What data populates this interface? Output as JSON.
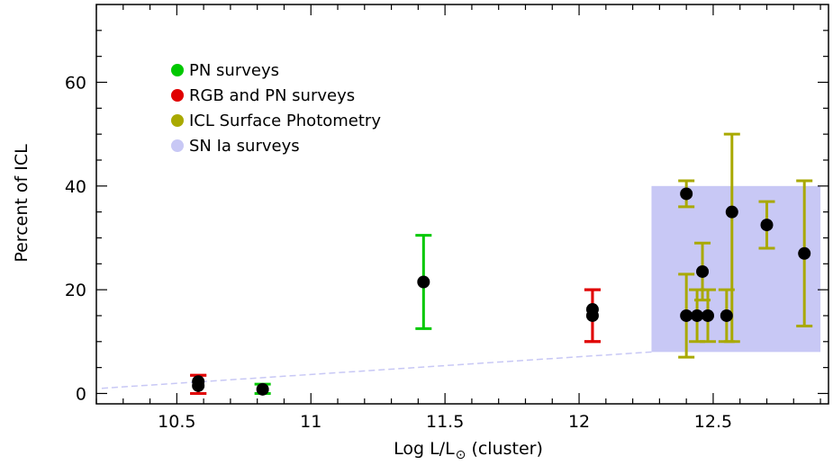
{
  "chart_data": {
    "type": "scatter",
    "xlabel": "Log L/L",
    "xlabel_suffix": " (cluster)",
    "ylabel": "Percent of ICL",
    "xlim": [
      10.2,
      12.93
    ],
    "ylim": [
      -2,
      75
    ],
    "xticks": [
      10.5,
      11,
      11.5,
      12,
      12.5
    ],
    "xtick_labels": [
      "10.5",
      "11",
      "11.5",
      "12",
      "12.5"
    ],
    "yticks": [
      0,
      20,
      40,
      60
    ],
    "ytick_labels": [
      "0",
      "20",
      "40",
      "60"
    ],
    "legend_position": "upper-left",
    "legend": [
      {
        "label": "PN surveys",
        "color": "#00c800",
        "marker": "circle"
      },
      {
        "label": "RGB and PN surveys",
        "color": "#e00000",
        "marker": "circle"
      },
      {
        "label": "ICL Surface Photometry",
        "color": "#a9a900",
        "marker": "circle"
      },
      {
        "label": "SN Ia surveys",
        "color": "#c8c8f5",
        "marker": "circle"
      }
    ],
    "shaded_region": {
      "x": [
        12.27,
        12.9
      ],
      "y": [
        8,
        40
      ],
      "color": "#c8c8f5",
      "series": "SN Ia surveys"
    },
    "trend_line": {
      "x": [
        10.22,
        12.27
      ],
      "y": [
        1,
        8
      ],
      "color": "#c8c8f5"
    },
    "series": [
      {
        "name": "PN surveys",
        "color": "#00c800",
        "points": [
          {
            "x": 10.82,
            "y": 0.8,
            "ylow": 0,
            "yhigh": 1.8
          },
          {
            "x": 11.42,
            "y": 21.5,
            "ylow": 12.5,
            "yhigh": 30.5
          }
        ]
      },
      {
        "name": "RGB and PN surveys",
        "color": "#e00000",
        "points": [
          {
            "x": 10.58,
            "y": 1.5,
            "ylow": 0,
            "yhigh": 3.5
          },
          {
            "x": 10.58,
            "y": 2.3,
            "ylow": 0,
            "yhigh": 3.5
          },
          {
            "x": 12.05,
            "y": 15,
            "ylow": 10,
            "yhigh": 20
          },
          {
            "x": 12.05,
            "y": 16.2,
            "ylow": 10,
            "yhigh": 20
          }
        ]
      },
      {
        "name": "ICL Surface Photometry",
        "color": "#a9a900",
        "points": [
          {
            "x": 12.4,
            "y": 38.5,
            "ylow": 36,
            "yhigh": 41
          },
          {
            "x": 12.4,
            "y": 15,
            "ylow": 7,
            "yhigh": 23
          },
          {
            "x": 12.44,
            "y": 15,
            "ylow": 10,
            "yhigh": 20
          },
          {
            "x": 12.46,
            "y": 23.5,
            "ylow": 18,
            "yhigh": 29
          },
          {
            "x": 12.48,
            "y": 15,
            "ylow": 10,
            "yhigh": 20
          },
          {
            "x": 12.55,
            "y": 15,
            "ylow": 10,
            "yhigh": 20
          },
          {
            "x": 12.57,
            "y": 35,
            "ylow": 10,
            "yhigh": 50
          },
          {
            "x": 12.7,
            "y": 32.5,
            "ylow": 28,
            "yhigh": 37
          },
          {
            "x": 12.84,
            "y": 27,
            "ylow": 13,
            "yhigh": 41
          }
        ]
      }
    ]
  }
}
